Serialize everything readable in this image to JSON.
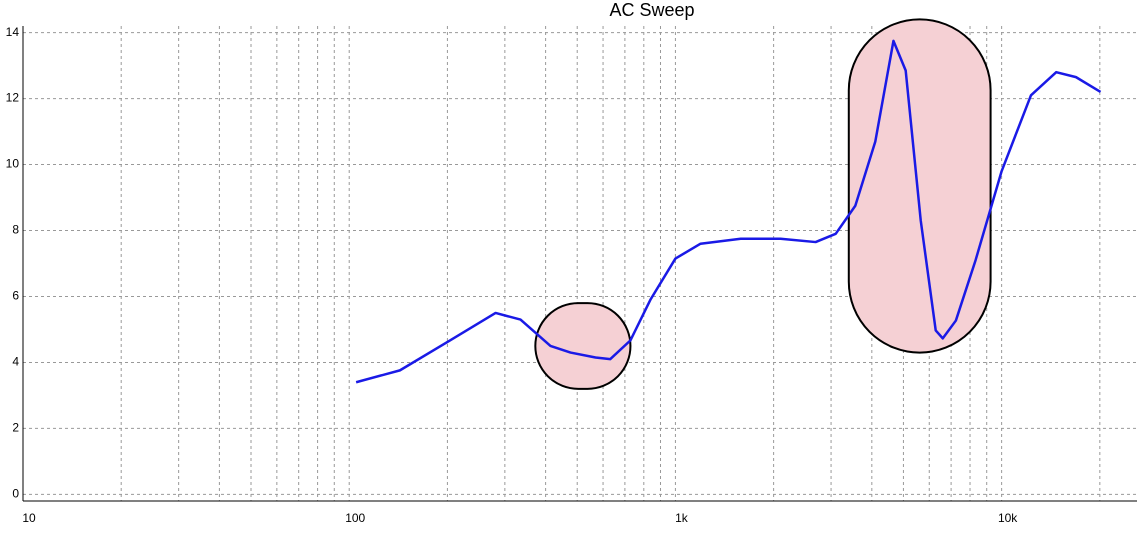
{
  "chart_data": {
    "type": "line",
    "title": "AC Sweep",
    "x": [
      105,
      143,
      204,
      281,
      335,
      414,
      477,
      569,
      631,
      728,
      838,
      1000,
      1194,
      1585,
      2100,
      2690,
      3100,
      3560,
      4100,
      4660,
      5080,
      5650,
      6280,
      6600,
      7240,
      8320,
      10000,
      12300,
      14700,
      16900,
      20100
    ],
    "values": [
      3.4,
      3.76,
      4.67,
      5.5,
      5.3,
      4.5,
      4.3,
      4.15,
      4.1,
      4.67,
      5.9,
      7.15,
      7.6,
      7.75,
      7.75,
      7.65,
      7.9,
      8.75,
      10.7,
      13.75,
      12.85,
      8.3,
      4.97,
      4.73,
      5.27,
      7.1,
      9.8,
      12.1,
      12.8,
      12.65,
      12.2
    ],
    "color": "#1a1ae6",
    "xscale": "log",
    "xlim": [
      10,
      26000
    ],
    "ylim": [
      -0.2,
      14.2
    ],
    "xticks": [
      10,
      100,
      {
        "value": 1000,
        "label": "1k"
      },
      {
        "value": 10000,
        "label": "10k"
      }
    ],
    "x_minor_ticks": [
      20,
      30,
      40,
      50,
      60,
      70,
      80,
      90,
      200,
      300,
      400,
      500,
      600,
      700,
      800,
      900,
      2000,
      3000,
      4000,
      5000,
      6000,
      7000,
      8000,
      9000,
      20000
    ],
    "yticks": [
      0,
      2,
      4,
      6,
      8,
      10,
      12,
      14
    ],
    "grid": true,
    "highlights": [
      {
        "x": [
          372,
          728
        ],
        "y": [
          3.2,
          5.8
        ]
      },
      {
        "x": [
          3400,
          9250
        ],
        "y": [
          4.3,
          14.4
        ]
      }
    ],
    "highlight_color": "#f5d0d4"
  }
}
